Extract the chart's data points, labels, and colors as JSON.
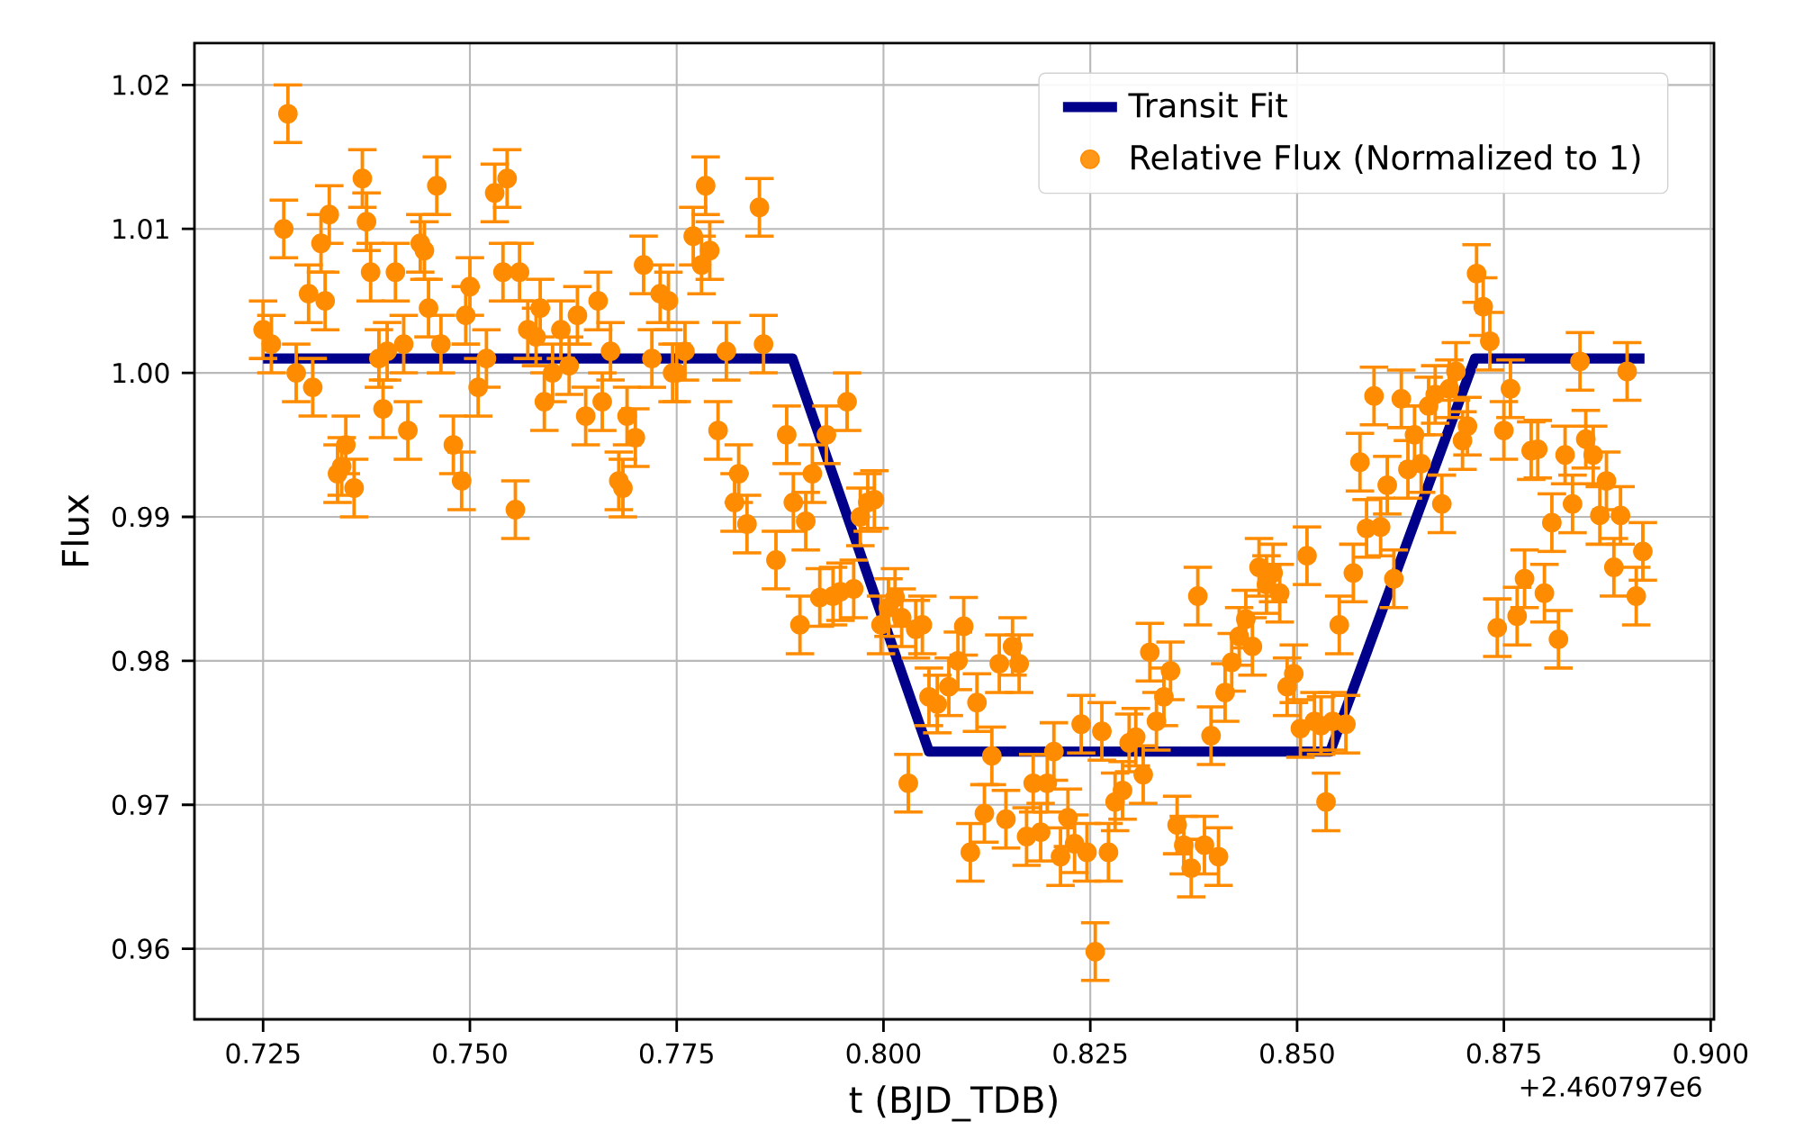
{
  "chart_data": {
    "type": "scatter",
    "xlabel": "t (BJD_TDB)",
    "ylabel": "Flux",
    "annotations": [
      "+2.460797e6"
    ],
    "xlim": [
      0.7167,
      0.9004
    ],
    "ylim": [
      0.9551,
      1.0229
    ],
    "xticks": [
      {
        "value": 0.725,
        "label": "0.725"
      },
      {
        "value": 0.75,
        "label": "0.750"
      },
      {
        "value": 0.775,
        "label": "0.775"
      },
      {
        "value": 0.8,
        "label": "0.800"
      },
      {
        "value": 0.825,
        "label": "0.825"
      },
      {
        "value": 0.85,
        "label": "0.850"
      },
      {
        "value": 0.875,
        "label": "0.875"
      },
      {
        "value": 0.9,
        "label": "0.900"
      }
    ],
    "yticks": [
      {
        "value": 0.96,
        "label": "0.96"
      },
      {
        "value": 0.97,
        "label": "0.97"
      },
      {
        "value": 0.98,
        "label": "0.98"
      },
      {
        "value": 0.99,
        "label": "0.99"
      },
      {
        "value": 1.0,
        "label": "1.00"
      },
      {
        "value": 1.01,
        "label": "1.01"
      },
      {
        "value": 1.02,
        "label": "1.02"
      }
    ],
    "grid": true,
    "legend": "top right",
    "marker": "circle",
    "series": [
      {
        "name": "Transit Fit",
        "type": "line",
        "color": "#00008b",
        "line_style": "solid",
        "marker": "none",
        "x": [
          0.725,
          0.789,
          0.8055,
          0.854,
          0.8715,
          0.892
        ],
        "values": [
          1.001,
          1.001,
          0.9737,
          0.9737,
          1.001,
          1.001
        ]
      },
      {
        "name": "Relative Flux (Normalized to 1)",
        "color": "#ff8c00",
        "x": [
          0.725,
          0.726,
          0.7275,
          0.728,
          0.729,
          0.7305,
          0.731,
          0.732,
          0.7325,
          0.733,
          0.734,
          0.7345,
          0.735,
          0.736,
          0.737,
          0.7375,
          0.738,
          0.739,
          0.7395,
          0.74,
          0.741,
          0.742,
          0.7425,
          0.744,
          0.7445,
          0.745,
          0.746,
          0.7465,
          0.748,
          0.749,
          0.7495,
          0.75,
          0.751,
          0.752,
          0.753,
          0.754,
          0.7545,
          0.7555,
          0.756,
          0.757,
          0.758,
          0.7585,
          0.759,
          0.76,
          0.761,
          0.762,
          0.763,
          0.764,
          0.7655,
          0.766,
          0.767,
          0.768,
          0.7685,
          0.769,
          0.77,
          0.771,
          0.772,
          0.773,
          0.774,
          0.7745,
          0.775,
          0.776,
          0.777,
          0.778,
          0.7785,
          0.779,
          0.78,
          0.781,
          0.782,
          0.7825,
          0.7835,
          0.785,
          0.7855,
          0.787,
          0.7883,
          0.7891,
          0.7899,
          0.7906,
          0.7914,
          0.7923,
          0.7931,
          0.7939,
          0.7948,
          0.7956,
          0.7964,
          0.7972,
          0.7981,
          0.7989,
          0.7997,
          0.8006,
          0.8014,
          0.8022,
          0.803,
          0.8039,
          0.8047,
          0.8055,
          0.8065,
          0.8079,
          0.809,
          0.8097,
          0.8105,
          0.8113,
          0.8122,
          0.8131,
          0.814,
          0.8148,
          0.8156,
          0.8164,
          0.8173,
          0.8181,
          0.819,
          0.8198,
          0.8206,
          0.8214,
          0.8223,
          0.8231,
          0.8239,
          0.8246,
          0.8256,
          0.8264,
          0.8272,
          0.828,
          0.8289,
          0.8297,
          0.8305,
          0.8314,
          0.8322,
          0.833,
          0.8339,
          0.8347,
          0.8355,
          0.8363,
          0.8372,
          0.838,
          0.8388,
          0.8396,
          0.8405,
          0.8413,
          0.8421,
          0.843,
          0.8438,
          0.8446,
          0.8454,
          0.8463,
          0.8471,
          0.8479,
          0.8488,
          0.8496,
          0.8504,
          0.8512,
          0.8521,
          0.8529,
          0.8535,
          0.8543,
          0.8551,
          0.8559,
          0.8568,
          0.8576,
          0.8584,
          0.8593,
          0.8601,
          0.8609,
          0.8617,
          0.8626,
          0.8634,
          0.8642,
          0.865,
          0.8659,
          0.8667,
          0.8675,
          0.8684,
          0.8692,
          0.87,
          0.8706,
          0.8717,
          0.8725,
          0.8733,
          0.8742,
          0.875,
          0.8758,
          0.8766,
          0.8775,
          0.8783,
          0.8791,
          0.8799,
          0.8808,
          0.8816,
          0.8824,
          0.8833,
          0.8842,
          0.8849,
          0.8858,
          0.8866,
          0.8874,
          0.8883,
          0.8891,
          0.8899,
          0.891,
          0.8918
        ],
        "values": [
          1.003,
          1.002,
          1.01,
          1.018,
          1.0,
          1.0055,
          0.999,
          1.009,
          1.005,
          1.011,
          0.993,
          0.9935,
          0.995,
          0.992,
          1.0135,
          1.0105,
          1.007,
          1.001,
          0.9975,
          1.0015,
          1.007,
          1.002,
          0.996,
          1.009,
          1.0085,
          1.0045,
          1.013,
          1.002,
          0.995,
          0.9925,
          1.004,
          1.006,
          0.999,
          1.001,
          1.0125,
          1.007,
          1.0135,
          0.9905,
          1.007,
          1.003,
          1.0025,
          1.0045,
          0.998,
          1.0,
          1.003,
          1.0005,
          1.004,
          0.997,
          1.005,
          0.998,
          1.0015,
          0.9925,
          0.992,
          0.997,
          0.9955,
          1.0075,
          1.001,
          1.0055,
          1.005,
          1.0,
          1.0,
          1.0015,
          1.0095,
          1.0075,
          1.013,
          1.0085,
          0.996,
          1.0015,
          0.991,
          0.993,
          0.9895,
          1.0115,
          1.002,
          0.987,
          0.9957,
          0.991,
          0.9825,
          0.9897,
          0.993,
          0.9844,
          0.9957,
          0.9845,
          0.9848,
          0.998,
          0.985,
          0.99,
          0.991,
          0.9912,
          0.9825,
          0.9837,
          0.9844,
          0.983,
          0.9715,
          0.9822,
          0.9825,
          0.9775,
          0.977,
          0.9782,
          0.98,
          0.9824,
          0.9667,
          0.9771,
          0.9694,
          0.9734,
          0.9798,
          0.969,
          0.981,
          0.9798,
          0.9678,
          0.9715,
          0.9681,
          0.9715,
          0.9737,
          0.9664,
          0.9691,
          0.9673,
          0.9756,
          0.9667,
          0.9598,
          0.9751,
          0.9667,
          0.9702,
          0.971,
          0.9743,
          0.9747,
          0.9721,
          0.9806,
          0.9758,
          0.9775,
          0.9793,
          0.9686,
          0.9672,
          0.9656,
          0.9845,
          0.9672,
          0.9748,
          0.9664,
          0.9778,
          0.9799,
          0.9817,
          0.9829,
          0.981,
          0.9865,
          0.9853,
          0.9861,
          0.9847,
          0.9782,
          0.9791,
          0.9753,
          0.9873,
          0.9758,
          0.9755,
          0.9702,
          0.9758,
          0.9825,
          0.9756,
          0.9861,
          0.9938,
          0.9892,
          0.9984,
          0.9893,
          0.9922,
          0.9857,
          0.9982,
          0.9933,
          0.9957,
          0.9937,
          0.9977,
          0.9985,
          0.9909,
          0.9989,
          1.0001,
          0.9953,
          0.9963,
          1.0069,
          1.0046,
          1.0022,
          0.9823,
          0.996,
          0.9989,
          0.9831,
          0.9857,
          0.9946,
          0.9947,
          0.9847,
          0.9896,
          0.9815,
          0.9943,
          0.9909,
          1.0008,
          0.9954,
          0.9943,
          0.9901,
          0.9925,
          0.9865,
          0.9901,
          1.0001,
          0.9845,
          0.9876
        ],
        "errors": [
          0.002,
          0.002,
          0.002,
          0.002,
          0.002,
          0.002,
          0.002,
          0.002,
          0.002,
          0.002,
          0.002,
          0.002,
          0.002,
          0.002,
          0.002,
          0.002,
          0.002,
          0.002,
          0.002,
          0.002,
          0.002,
          0.002,
          0.002,
          0.002,
          0.002,
          0.002,
          0.002,
          0.002,
          0.002,
          0.002,
          0.002,
          0.002,
          0.002,
          0.002,
          0.002,
          0.002,
          0.002,
          0.002,
          0.002,
          0.002,
          0.002,
          0.002,
          0.002,
          0.002,
          0.002,
          0.002,
          0.002,
          0.002,
          0.002,
          0.002,
          0.002,
          0.002,
          0.002,
          0.002,
          0.002,
          0.002,
          0.002,
          0.002,
          0.002,
          0.002,
          0.002,
          0.002,
          0.002,
          0.002,
          0.002,
          0.002,
          0.002,
          0.002,
          0.002,
          0.002,
          0.002,
          0.002,
          0.002,
          0.002,
          0.002,
          0.002,
          0.002,
          0.002,
          0.002,
          0.002,
          0.002,
          0.002,
          0.002,
          0.002,
          0.002,
          0.002,
          0.002,
          0.002,
          0.002,
          0.002,
          0.002,
          0.002,
          0.002,
          0.002,
          0.002,
          0.002,
          0.002,
          0.002,
          0.002,
          0.002,
          0.002,
          0.002,
          0.002,
          0.002,
          0.002,
          0.002,
          0.002,
          0.002,
          0.002,
          0.002,
          0.002,
          0.002,
          0.002,
          0.002,
          0.002,
          0.002,
          0.002,
          0.002,
          0.002,
          0.002,
          0.002,
          0.002,
          0.002,
          0.002,
          0.002,
          0.002,
          0.002,
          0.002,
          0.002,
          0.002,
          0.002,
          0.002,
          0.002,
          0.002,
          0.002,
          0.002,
          0.002,
          0.002,
          0.002,
          0.002,
          0.002,
          0.002,
          0.002,
          0.002,
          0.002,
          0.002,
          0.002,
          0.002,
          0.002,
          0.002,
          0.002,
          0.002,
          0.002,
          0.002,
          0.002,
          0.002,
          0.002,
          0.002,
          0.002,
          0.002,
          0.002,
          0.002,
          0.002,
          0.002,
          0.002,
          0.002,
          0.002,
          0.002,
          0.002,
          0.002,
          0.002,
          0.002,
          0.002,
          0.002,
          0.002,
          0.002,
          0.002,
          0.002,
          0.002,
          0.002,
          0.002,
          0.002,
          0.002,
          0.002,
          0.002,
          0.002,
          0.002,
          0.002,
          0.002,
          0.002,
          0.002,
          0.002,
          0.002,
          0.002,
          0.002,
          0.002,
          0.002,
          0.002,
          0.002
        ]
      }
    ]
  }
}
